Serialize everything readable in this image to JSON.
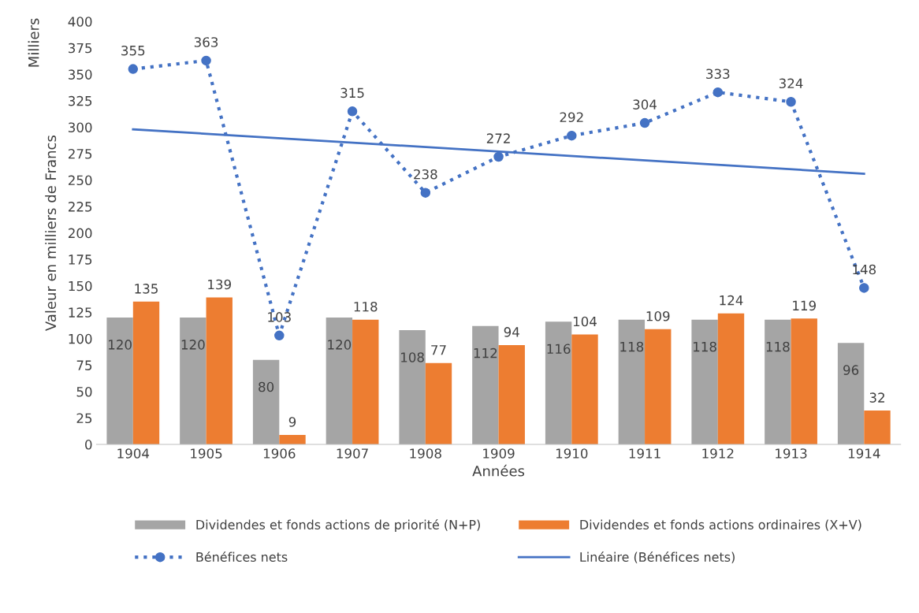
{
  "chart_data": {
    "type": "bar",
    "xlabel": "Années",
    "ylabel": "Valeur en milliers de Francs",
    "annotations": [
      "Milliers"
    ],
    "categories": [
      "1904",
      "1905",
      "1906",
      "1907",
      "1908",
      "1909",
      "1910",
      "1911",
      "1912",
      "1913",
      "1914"
    ],
    "series": [
      {
        "name": "Dividendes et fonds actions de priorité (N+P)",
        "color": "#a5a5a5",
        "data_labels": true,
        "values": [
          120,
          120,
          80,
          120,
          108,
          112,
          116,
          118,
          118,
          118,
          96
        ]
      },
      {
        "name": "Dividendes et fonds actions ordinaires (X+V)",
        "color": "#ed7d31",
        "data_labels": true,
        "values": [
          135,
          139,
          9,
          118,
          77,
          94,
          104,
          109,
          124,
          119,
          32
        ]
      },
      {
        "name": "Bénéfices nets",
        "type": "line",
        "color": "#4472c4",
        "marker": "circle",
        "line_style": "dotted",
        "data_labels": true,
        "values": [
          355,
          363,
          103,
          315,
          238,
          272,
          292,
          304,
          333,
          324,
          148
        ]
      },
      {
        "name": "Linéaire (Bénéfices nets)",
        "type": "line",
        "color": "#4472c4",
        "marker": "none",
        "line_style": "solid",
        "values": [
          298,
          null,
          null,
          null,
          null,
          null,
          null,
          null,
          null,
          null,
          256
        ]
      }
    ],
    "ylim": [
      0,
      400
    ],
    "yticks": [
      0,
      25,
      50,
      75,
      100,
      125,
      150,
      175,
      200,
      225,
      250,
      275,
      300,
      325,
      350,
      375,
      400
    ],
    "grid": false,
    "legend": "bottom"
  }
}
